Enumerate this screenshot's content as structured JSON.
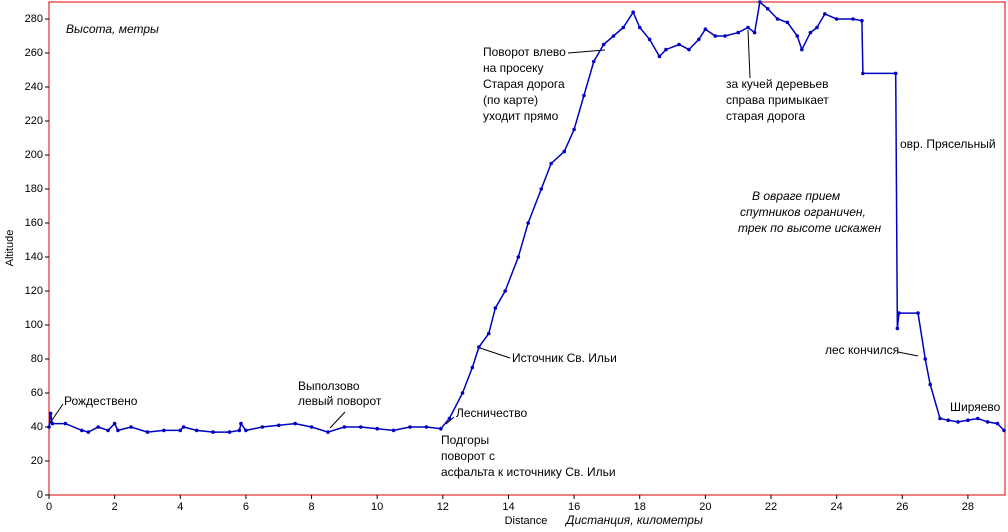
{
  "chart_data": {
    "type": "line",
    "y_label": "Altitude",
    "x_label": "Distance",
    "y_caption": "Высота, метры",
    "x_caption": "Дистанция, километры",
    "xlim": [
      0,
      29.13
    ],
    "ylim": [
      0,
      290
    ],
    "xticks": [
      0,
      2,
      4,
      6,
      8,
      10,
      12,
      14,
      16,
      18,
      20,
      22,
      24,
      26,
      28
    ],
    "yticks": [
      0,
      20,
      40,
      60,
      80,
      100,
      120,
      140,
      160,
      180,
      200,
      220,
      240,
      260,
      280
    ],
    "color": "#0000c0",
    "x": [
      0,
      0.05,
      0.1,
      0.5,
      1,
      1.2,
      1.5,
      1.8,
      2,
      2.1,
      2.5,
      3,
      3.5,
      4,
      4.1,
      4.5,
      5,
      5.5,
      5.8,
      5.85,
      6,
      6.5,
      7,
      7.5,
      8,
      8.5,
      9,
      9.5,
      10,
      10.5,
      11,
      11.5,
      11.94,
      12.2,
      12.6,
      12.9,
      13.1,
      13.4,
      13.6,
      13.9,
      14.3,
      14.6,
      15,
      15.3,
      15.7,
      16,
      16.3,
      16.6,
      16.9,
      17.2,
      17.5,
      17.8,
      18,
      18.3,
      18.6,
      18.8,
      19.2,
      19.5,
      19.8,
      20,
      20.3,
      20.6,
      21,
      21.3,
      21.5,
      21.66,
      21.9,
      22.2,
      22.5,
      22.8,
      22.94,
      23.2,
      23.4,
      23.64,
      24,
      24.5,
      24.77,
      24.8,
      25.8,
      25.85,
      25.9,
      26.48,
      26.7,
      26.85,
      27.15,
      27.4,
      27.7,
      28,
      28.3,
      28.6,
      28.9,
      29.1
    ],
    "values": [
      40,
      48,
      42,
      42,
      38,
      37,
      40,
      38,
      42,
      38,
      40,
      37,
      38,
      38,
      40,
      38,
      37,
      37,
      38,
      42,
      38,
      40,
      41,
      42,
      40,
      37,
      40,
      40,
      39,
      38,
      40,
      40,
      39,
      45,
      60,
      75,
      87,
      95,
      110,
      120,
      140,
      160,
      180,
      195,
      202,
      215,
      235,
      255,
      265,
      270,
      275,
      284,
      275,
      268,
      258,
      262,
      265,
      262,
      268,
      274,
      270,
      270,
      272,
      275,
      272,
      290,
      286,
      280,
      278,
      270,
      262,
      272,
      275,
      283,
      280,
      280,
      279,
      248,
      248,
      98,
      107,
      107,
      80,
      65,
      45,
      44,
      43,
      44,
      45,
      43,
      42,
      38
    ],
    "annotations": [
      [
        "Рождествено"
      ],
      [
        "Выползово",
        "левый поворот"
      ],
      [
        "Лесничество"
      ],
      [
        "Подгоры",
        "поворот с",
        "асфальта к источнику Св. Ильи"
      ],
      [
        "Источник Св. Ильи"
      ],
      [
        "Поворот влево",
        "на просеку",
        "Старая дорога",
        "(по карте)",
        "уходит прямо"
      ],
      [
        "за кучей деревьев",
        "справа примыкает",
        "старая дорога"
      ],
      [
        "овр. Прясельный"
      ],
      [
        "В овраге прием",
        "спутников ограничен,",
        "трек по высоте искажен"
      ],
      [
        "лес кончился"
      ],
      [
        "Ширяево"
      ]
    ]
  }
}
